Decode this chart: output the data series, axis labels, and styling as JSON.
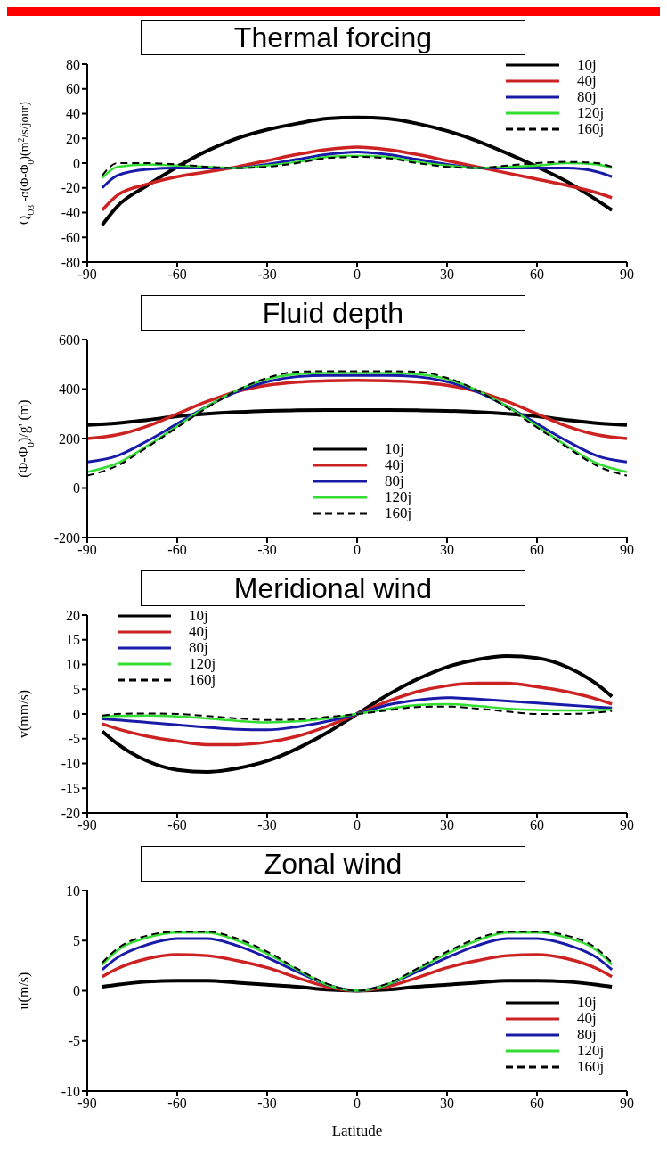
{
  "chart_data": [
    {
      "type": "line",
      "title": "Thermal forcing",
      "ylabel": "Q$_{O3}$ -α(Φ-Φ$_{0}$)(m$^{2}$/s/jour)",
      "x": [
        -85,
        -80,
        -70,
        -60,
        -50,
        -40,
        -30,
        -20,
        -10,
        0,
        10,
        20,
        30,
        40,
        50,
        60,
        70,
        80,
        85
      ],
      "xlim": [
        -90,
        90
      ],
      "xticks": [
        -90,
        -60,
        -30,
        0,
        30,
        60,
        90
      ],
      "ylim": [
        -80,
        80
      ],
      "yticks": [
        -80,
        -60,
        -40,
        -20,
        0,
        20,
        40,
        60,
        80
      ],
      "legend": "top right",
      "grid": false,
      "series": [
        {
          "name": "10j",
          "color": "#000000",
          "values": [
            -50,
            -35,
            -18,
            -3,
            10,
            20,
            27,
            32,
            36,
            37,
            36,
            32,
            26,
            18,
            8,
            -3,
            -15,
            -30,
            -38
          ]
        },
        {
          "name": "40j",
          "color": "#cc2222",
          "values": [
            -38,
            -26,
            -17,
            -11,
            -7,
            -3,
            2,
            7,
            11,
            13,
            11,
            7,
            2,
            -3,
            -8,
            -13,
            -18,
            -24,
            -28
          ]
        },
        {
          "name": "80j",
          "color": "#1a1aa8",
          "values": [
            -20,
            -10,
            -5,
            -4,
            -4,
            -4,
            -1,
            3,
            7,
            9,
            7,
            3,
            -1,
            -4,
            -4,
            -4,
            -4,
            -7,
            -11
          ]
        },
        {
          "name": "120j",
          "color": "#33dd33",
          "values": [
            -12,
            -3,
            -1,
            -2,
            -3,
            -4,
            -2,
            1,
            5,
            6,
            5,
            1,
            -2,
            -4,
            -3,
            -2,
            0,
            -1,
            -4
          ]
        },
        {
          "name": "160j",
          "color": "#000000",
          "line_style": "dashed",
          "values": [
            -10,
            0,
            0,
            -1,
            -3,
            -4,
            -3,
            0,
            4,
            5,
            4,
            0,
            -3,
            -4,
            -2,
            0,
            1,
            0,
            -3
          ]
        }
      ]
    },
    {
      "type": "line",
      "title": "Fluid depth",
      "ylabel": "(Φ-Φ$_{0}$)/g' (m)",
      "x": [
        -90,
        -80,
        -70,
        -60,
        -50,
        -40,
        -30,
        -20,
        -10,
        0,
        10,
        20,
        30,
        40,
        50,
        60,
        70,
        80,
        90
      ],
      "xlim": [
        -90,
        90
      ],
      "xticks": [
        -90,
        -60,
        -30,
        0,
        30,
        60,
        90
      ],
      "ylim": [
        -200,
        600
      ],
      "yticks": [
        -200,
        0,
        200,
        400,
        600
      ],
      "legend": "bottom",
      "grid": false,
      "series": [
        {
          "name": "10j",
          "color": "#000000",
          "values": [
            255,
            262,
            275,
            290,
            300,
            307,
            312,
            314,
            315,
            315,
            315,
            314,
            312,
            307,
            300,
            290,
            275,
            262,
            255
          ]
        },
        {
          "name": "40j",
          "color": "#cc2222",
          "values": [
            200,
            215,
            250,
            300,
            350,
            390,
            415,
            428,
            433,
            435,
            433,
            428,
            415,
            390,
            350,
            300,
            250,
            215,
            200
          ]
        },
        {
          "name": "80j",
          "color": "#1a1aa8",
          "values": [
            105,
            130,
            190,
            260,
            330,
            390,
            430,
            450,
            455,
            455,
            455,
            450,
            430,
            390,
            330,
            260,
            190,
            130,
            105
          ]
        },
        {
          "name": "120j",
          "color": "#33dd33",
          "values": [
            65,
            100,
            170,
            250,
            330,
            395,
            440,
            460,
            465,
            465,
            465,
            460,
            440,
            395,
            330,
            250,
            170,
            100,
            65
          ]
        },
        {
          "name": "160j",
          "color": "#000000",
          "line_style": "dashed",
          "values": [
            50,
            90,
            165,
            245,
            325,
            395,
            445,
            470,
            472,
            472,
            472,
            470,
            445,
            395,
            325,
            245,
            165,
            90,
            50
          ]
        }
      ]
    },
    {
      "type": "line",
      "title": "Meridional wind",
      "ylabel": "v(mm/s)",
      "x": [
        -85,
        -80,
        -70,
        -60,
        -50,
        -40,
        -30,
        -20,
        -10,
        0,
        10,
        20,
        30,
        40,
        50,
        60,
        70,
        80,
        85
      ],
      "xlim": [
        -90,
        90
      ],
      "xticks": [
        -90,
        -60,
        -30,
        0,
        30,
        60,
        90
      ],
      "ylim": [
        -20,
        20
      ],
      "yticks": [
        -20,
        -15,
        -10,
        -5,
        0,
        5,
        10,
        15,
        20
      ],
      "legend": "top left",
      "grid": false,
      "series": [
        {
          "name": "10j",
          "color": "#000000",
          "values": [
            -3.5,
            -6,
            -9.5,
            -11.3,
            -11.7,
            -11,
            -9.5,
            -7,
            -3.8,
            0,
            3.8,
            7,
            9.5,
            11,
            11.7,
            11.3,
            9.5,
            6,
            3.5
          ]
        },
        {
          "name": "40j",
          "color": "#cc2222",
          "values": [
            -2,
            -3,
            -4.5,
            -5.5,
            -6.2,
            -6.2,
            -5.7,
            -4.5,
            -2.5,
            0,
            2.5,
            4.5,
            5.7,
            6.2,
            6.2,
            5.5,
            4.5,
            3,
            2
          ]
        },
        {
          "name": "80j",
          "color": "#1a1aa8",
          "values": [
            -1,
            -1.2,
            -1.7,
            -2.2,
            -2.7,
            -3.1,
            -3.2,
            -2.6,
            -1.5,
            0,
            1.8,
            2.8,
            3.3,
            3,
            2.6,
            2.2,
            1.8,
            1.4,
            1.2
          ]
        },
        {
          "name": "120j",
          "color": "#33dd33",
          "values": [
            -0.5,
            -0.4,
            -0.3,
            -0.5,
            -0.9,
            -1.4,
            -1.7,
            -1.5,
            -0.9,
            0,
            1,
            1.8,
            2,
            1.6,
            1.1,
            0.8,
            0.7,
            0.8,
            0.9
          ]
        },
        {
          "name": "160j",
          "color": "#000000",
          "line_style": "dashed",
          "values": [
            -0.3,
            0,
            0.1,
            0,
            -0.4,
            -0.9,
            -1.2,
            -1.1,
            -0.6,
            0,
            0.7,
            1.4,
            1.5,
            1.1,
            0.5,
            0,
            0,
            0.3,
            0.6
          ]
        }
      ]
    },
    {
      "type": "line",
      "title": "Zonal wind",
      "xlabel": "Latitude",
      "ylabel": "u(m/s)",
      "x": [
        -85,
        -80,
        -70,
        -60,
        -50,
        -40,
        -30,
        -20,
        -10,
        0,
        10,
        20,
        30,
        40,
        50,
        60,
        70,
        80,
        85
      ],
      "xlim": [
        -90,
        90
      ],
      "xticks": [
        -90,
        -60,
        -30,
        0,
        30,
        60,
        90
      ],
      "ylim": [
        -10,
        10
      ],
      "yticks": [
        -10,
        -5,
        0,
        5,
        10
      ],
      "legend": "bottom right",
      "grid": false,
      "series": [
        {
          "name": "10j",
          "color": "#000000",
          "values": [
            0.4,
            0.6,
            0.9,
            1,
            1,
            0.8,
            0.6,
            0.4,
            0.1,
            0,
            0.1,
            0.4,
            0.6,
            0.8,
            1,
            1,
            0.9,
            0.6,
            0.4
          ]
        },
        {
          "name": "40j",
          "color": "#cc2222",
          "values": [
            1.4,
            2.2,
            3.2,
            3.6,
            3.5,
            3,
            2.3,
            1.3,
            0.4,
            0,
            0.4,
            1.3,
            2.3,
            3,
            3.5,
            3.6,
            3.2,
            2.2,
            1.4
          ]
        },
        {
          "name": "80j",
          "color": "#1a1aa8",
          "values": [
            2.1,
            3.3,
            4.6,
            5.2,
            5.2,
            4.5,
            3.3,
            1.9,
            0.6,
            0,
            0.6,
            1.9,
            3.3,
            4.5,
            5.2,
            5.2,
            4.6,
            3.3,
            2.1
          ]
        },
        {
          "name": "120j",
          "color": "#33dd33",
          "values": [
            2.6,
            4,
            5.3,
            5.8,
            5.8,
            5,
            3.7,
            2.1,
            0.6,
            0,
            0.6,
            2.1,
            3.7,
            5,
            5.8,
            5.8,
            5.3,
            4,
            2.6
          ]
        },
        {
          "name": "160j",
          "color": "#000000",
          "line_style": "dashed",
          "values": [
            2.8,
            4.2,
            5.5,
            5.9,
            5.9,
            5.2,
            3.9,
            2.2,
            0.7,
            0,
            0.7,
            2.2,
            3.9,
            5.2,
            5.9,
            5.9,
            5.5,
            4.2,
            2.8
          ]
        }
      ]
    }
  ]
}
